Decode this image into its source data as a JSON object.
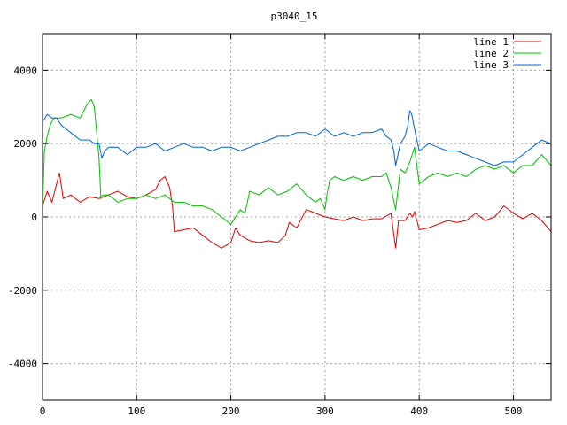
{
  "chart_data": {
    "type": "line",
    "title": "p3040_15",
    "xlabel": "",
    "ylabel": "",
    "xlim": [
      0,
      540
    ],
    "ylim": [
      -5000,
      5000
    ],
    "x_ticks": [
      0,
      100,
      200,
      300,
      400,
      500
    ],
    "y_ticks": [
      -4000,
      -2000,
      0,
      2000,
      4000
    ],
    "grid": true,
    "legend_position": "top-right",
    "series": [
      {
        "name": "line 1",
        "color": "#e00000",
        "x": [
          0,
          5,
          10,
          15,
          18,
          22,
          30,
          40,
          50,
          60,
          70,
          80,
          90,
          100,
          110,
          120,
          125,
          130,
          135,
          138,
          140,
          150,
          160,
          170,
          180,
          190,
          200,
          205,
          210,
          220,
          230,
          240,
          250,
          258,
          262,
          270,
          280,
          290,
          300,
          310,
          320,
          330,
          340,
          350,
          360,
          370,
          375,
          378,
          385,
          390,
          393,
          395,
          400,
          410,
          420,
          430,
          440,
          450,
          460,
          470,
          480,
          490,
          500,
          510,
          520,
          530,
          540
        ],
        "y": [
          300,
          700,
          400,
          900,
          1200,
          500,
          600,
          400,
          550,
          500,
          600,
          700,
          550,
          500,
          600,
          750,
          1000,
          1100,
          800,
          300,
          -400,
          -350,
          -300,
          -500,
          -700,
          -850,
          -700,
          -300,
          -500,
          -650,
          -700,
          -650,
          -700,
          -500,
          -150,
          -300,
          200,
          100,
          0,
          -50,
          -100,
          0,
          -100,
          -50,
          -50,
          100,
          -850,
          -100,
          -100,
          100,
          0,
          150,
          -350,
          -300,
          -200,
          -100,
          -150,
          -100,
          100,
          -100,
          0,
          300,
          100,
          -50,
          100,
          -100,
          -400
        ]
      },
      {
        "name": "line 2",
        "color": "#00c000",
        "x": [
          0,
          2,
          5,
          8,
          12,
          20,
          30,
          40,
          48,
          52,
          55,
          60,
          62,
          64,
          70,
          80,
          90,
          100,
          110,
          120,
          130,
          140,
          150,
          160,
          170,
          180,
          190,
          200,
          210,
          215,
          220,
          230,
          240,
          250,
          260,
          270,
          280,
          290,
          295,
          300,
          302,
          305,
          310,
          320,
          330,
          340,
          350,
          360,
          365,
          370,
          375,
          380,
          385,
          390,
          395,
          400,
          410,
          420,
          430,
          440,
          450,
          460,
          470,
          480,
          490,
          500,
          510,
          520,
          530,
          540
        ],
        "y": [
          200,
          1800,
          2200,
          2500,
          2700,
          2700,
          2800,
          2700,
          3100,
          3200,
          3000,
          1600,
          500,
          600,
          600,
          400,
          500,
          500,
          600,
          500,
          600,
          400,
          400,
          300,
          300,
          200,
          0,
          -200,
          200,
          100,
          700,
          600,
          800,
          600,
          700,
          900,
          600,
          400,
          500,
          200,
          600,
          1000,
          1100,
          1000,
          1100,
          1000,
          1100,
          1100,
          1200,
          800,
          200,
          1300,
          1200,
          1500,
          1900,
          900,
          1100,
          1200,
          1100,
          1200,
          1100,
          1300,
          1400,
          1300,
          1400,
          1200,
          1400,
          1400,
          1700,
          1400
        ]
      },
      {
        "name": "line 3",
        "color": "#0060e0",
        "x": [
          0,
          5,
          10,
          15,
          20,
          30,
          40,
          50,
          55,
          60,
          63,
          66,
          70,
          80,
          90,
          100,
          110,
          120,
          130,
          140,
          150,
          160,
          170,
          180,
          190,
          200,
          210,
          220,
          230,
          240,
          250,
          260,
          270,
          280,
          290,
          300,
          310,
          320,
          330,
          340,
          350,
          360,
          365,
          370,
          373,
          375,
          380,
          385,
          388,
          390,
          392,
          395,
          400,
          410,
          420,
          430,
          440,
          450,
          460,
          470,
          480,
          490,
          500,
          510,
          520,
          530,
          540
        ],
        "y": [
          2600,
          2800,
          2700,
          2700,
          2500,
          2300,
          2100,
          2100,
          2000,
          2000,
          1600,
          1800,
          1900,
          1900,
          1700,
          1900,
          1900,
          2000,
          1800,
          1900,
          2000,
          1900,
          1900,
          1800,
          1900,
          1900,
          1800,
          1900,
          2000,
          2100,
          2200,
          2200,
          2300,
          2300,
          2200,
          2400,
          2200,
          2300,
          2200,
          2300,
          2300,
          2400,
          2200,
          2100,
          1800,
          1400,
          2000,
          2200,
          2500,
          2900,
          2800,
          2400,
          1800,
          2000,
          1900,
          1800,
          1800,
          1700,
          1600,
          1500,
          1400,
          1500,
          1500,
          1700,
          1900,
          2100,
          2000
        ]
      }
    ]
  }
}
